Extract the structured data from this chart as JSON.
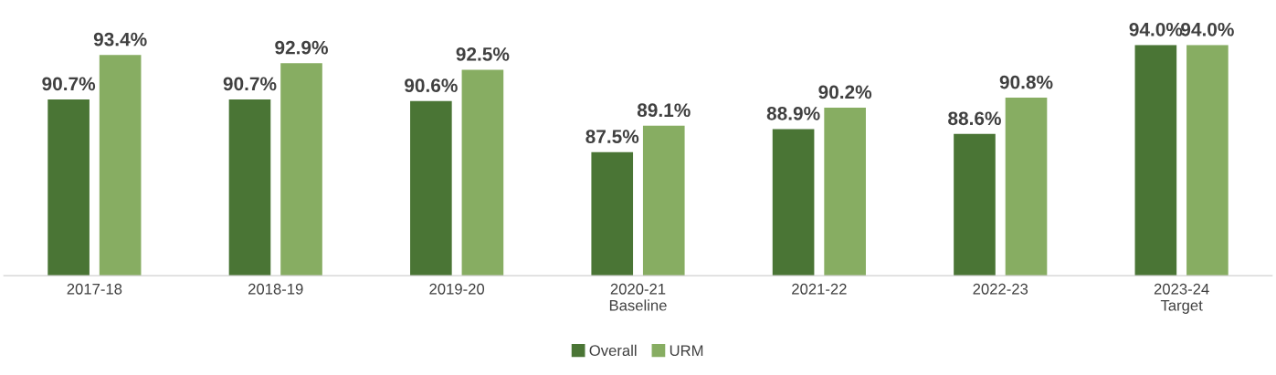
{
  "chart_data": {
    "type": "bar",
    "categories": [
      "2017-18",
      "2018-19",
      "2019-20",
      "2020-21\nBaseline",
      "2021-22",
      "2022-23",
      "2023-24\nTarget"
    ],
    "series": [
      {
        "name": "Overall",
        "color": "#4a7535",
        "values": [
          90.7,
          90.7,
          90.6,
          87.5,
          88.9,
          88.6,
          94.0
        ],
        "value_labels": [
          "90.7%",
          "90.7%",
          "90.6%",
          "87.5%",
          "88.9%",
          "88.6%",
          "94.0%"
        ]
      },
      {
        "name": "URM",
        "color": "#87ad62",
        "values": [
          93.4,
          92.9,
          92.5,
          89.1,
          90.2,
          90.8,
          94.0
        ],
        "value_labels": [
          "93.4%",
          "92.9%",
          "92.5%",
          "89.1%",
          "90.2%",
          "90.8%",
          "94.0%"
        ]
      }
    ],
    "ylim": [
      80,
      94.0
    ],
    "tick_labels": "x",
    "grid": false,
    "legend": "bottom"
  }
}
